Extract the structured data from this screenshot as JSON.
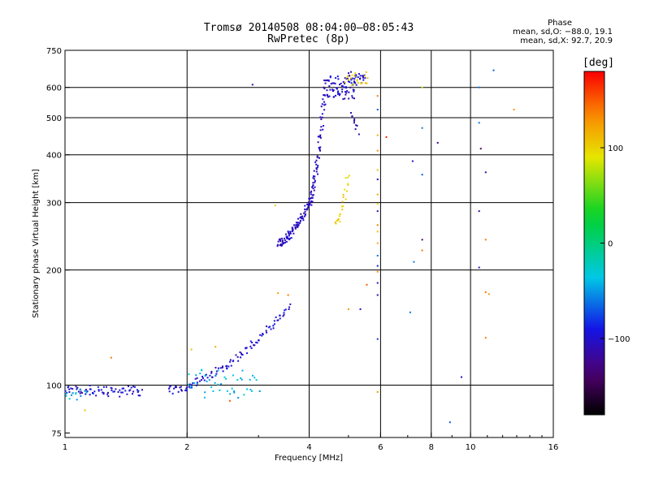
{
  "header": {
    "line1": "Tromsø 20140508 08:04:00–08:05:43",
    "line2": "RwPretec (8p)"
  },
  "stats": {
    "heading": "Phase",
    "line_o": "mean, sd,O: −88.0, 19.1",
    "line_x": "mean, sd,X:  92.7, 20.9"
  },
  "colorbar": {
    "label": "[deg]",
    "ticks": [
      "100",
      "0",
      "−100"
    ],
    "tick_values": [
      100,
      0,
      -100
    ],
    "range": [
      -180,
      180
    ]
  },
  "chart_data": {
    "type": "scatter",
    "title": "Tromsø 20140508 08:04:00–08:05:43",
    "subtitle": "RwPretec (8p)",
    "xlabel": "Frequency [MHz]",
    "ylabel": "Stationary phase Virtual Height [km]",
    "xscale": "log",
    "yscale": "log",
    "xlim": [
      1,
      16
    ],
    "ylim": [
      73,
      750
    ],
    "grid": true,
    "x_ticks": [
      1,
      2,
      4,
      6,
      8,
      10,
      16
    ],
    "x_tick_labels": [
      "1",
      "2",
      "4",
      "6",
      "8",
      "10",
      "16"
    ],
    "y_ticks": [
      75,
      100,
      200,
      300,
      400,
      500,
      600,
      750
    ],
    "y_tick_labels": [
      "75",
      "100",
      "200",
      "300",
      "400",
      "500",
      "600",
      "750"
    ],
    "color_scale": "phase (deg), -180 to 180, rainbow",
    "clusters": [
      {
        "name": "low E trace",
        "x0": 1.0,
        "x1": 1.55,
        "y0": 95,
        "y1": 98,
        "phase": -100,
        "n": 70,
        "shape": "flat"
      },
      {
        "name": "low E start",
        "x0": 1.0,
        "x1": 1.12,
        "y0": 93,
        "y1": 96,
        "phase": -40,
        "n": 12,
        "shape": "flat"
      },
      {
        "name": "E rise A",
        "x0": 1.8,
        "x1": 3.6,
        "y0": 97,
        "y1": 160,
        "phase": -100,
        "n": 110,
        "shape": "rise"
      },
      {
        "name": "E rise B",
        "x0": 2.0,
        "x1": 3.0,
        "y0": 95,
        "y1": 110,
        "phase": -40,
        "n": 45,
        "shape": "flat"
      },
      {
        "name": "F trace low",
        "x0": 3.35,
        "x1": 4.0,
        "y0": 235,
        "y1": 300,
        "phase": -105,
        "n": 90,
        "shape": "rise"
      },
      {
        "name": "F trace vertical",
        "x0": 4.0,
        "x1": 4.4,
        "y0": 300,
        "y1": 640,
        "phase": -105,
        "n": 80,
        "shape": "rise"
      },
      {
        "name": "F cusp",
        "x0": 4.4,
        "x1": 5.2,
        "y0": 560,
        "y1": 640,
        "phase": -100,
        "n": 70,
        "shape": "flat"
      },
      {
        "name": "F top",
        "x0": 5.0,
        "x1": 5.5,
        "y0": 620,
        "y1": 650,
        "phase": -100,
        "n": 25,
        "shape": "flat"
      },
      {
        "name": "X trace top",
        "x0": 4.9,
        "x1": 5.6,
        "y0": 610,
        "y1": 655,
        "phase": 100,
        "n": 20,
        "shape": "flat"
      },
      {
        "name": "X trace mid",
        "x0": 4.65,
        "x1": 5.0,
        "y0": 265,
        "y1": 355,
        "phase": 100,
        "n": 25,
        "shape": "rise"
      },
      {
        "name": "F descent",
        "x0": 5.1,
        "x1": 5.3,
        "y0": 460,
        "y1": 510,
        "phase": -110,
        "n": 10,
        "shape": "fall"
      }
    ],
    "points": [
      {
        "x": 2.9,
        "y": 610,
        "phase": -110
      },
      {
        "x": 1.3,
        "y": 118,
        "phase": 140
      },
      {
        "x": 1.12,
        "y": 86,
        "phase": 110
      },
      {
        "x": 2.55,
        "y": 91,
        "phase": 150
      },
      {
        "x": 2.05,
        "y": 124,
        "phase": 110
      },
      {
        "x": 2.35,
        "y": 126,
        "phase": 120
      },
      {
        "x": 3.35,
        "y": 174,
        "phase": 120
      },
      {
        "x": 3.55,
        "y": 172,
        "phase": 140
      },
      {
        "x": 3.3,
        "y": 295,
        "phase": 100
      },
      {
        "x": 5.9,
        "y": 570,
        "phase": 140
      },
      {
        "x": 5.9,
        "y": 525,
        "phase": -70
      },
      {
        "x": 5.9,
        "y": 450,
        "phase": 120
      },
      {
        "x": 5.9,
        "y": 410,
        "phase": 130
      },
      {
        "x": 5.9,
        "y": 365,
        "phase": 110
      },
      {
        "x": 5.9,
        "y": 345,
        "phase": -100
      },
      {
        "x": 5.9,
        "y": 315,
        "phase": 120
      },
      {
        "x": 5.9,
        "y": 298,
        "phase": 100
      },
      {
        "x": 5.9,
        "y": 285,
        "phase": -110
      },
      {
        "x": 5.9,
        "y": 262,
        "phase": 140
      },
      {
        "x": 5.9,
        "y": 252,
        "phase": 110
      },
      {
        "x": 5.9,
        "y": 235,
        "phase": 120
      },
      {
        "x": 5.9,
        "y": 218,
        "phase": -60
      },
      {
        "x": 5.9,
        "y": 205,
        "phase": -100
      },
      {
        "x": 5.9,
        "y": 198,
        "phase": 130
      },
      {
        "x": 5.9,
        "y": 185,
        "phase": -100
      },
      {
        "x": 5.9,
        "y": 172,
        "phase": -110
      },
      {
        "x": 5.9,
        "y": 132,
        "phase": -80
      },
      {
        "x": 5.9,
        "y": 96,
        "phase": 130
      },
      {
        "x": 6.2,
        "y": 445,
        "phase": 170
      },
      {
        "x": 5.55,
        "y": 183,
        "phase": 150
      },
      {
        "x": 5.35,
        "y": 158,
        "phase": -100
      },
      {
        "x": 5.0,
        "y": 158,
        "phase": 130
      },
      {
        "x": 7.2,
        "y": 385,
        "phase": -100
      },
      {
        "x": 7.6,
        "y": 470,
        "phase": -60
      },
      {
        "x": 7.6,
        "y": 355,
        "phase": -70
      },
      {
        "x": 7.6,
        "y": 240,
        "phase": -130
      },
      {
        "x": 7.25,
        "y": 210,
        "phase": -60
      },
      {
        "x": 7.6,
        "y": 225,
        "phase": 140
      },
      {
        "x": 7.1,
        "y": 155,
        "phase": -60
      },
      {
        "x": 7.6,
        "y": 600,
        "phase": 80
      },
      {
        "x": 8.3,
        "y": 430,
        "phase": -130
      },
      {
        "x": 8.9,
        "y": 80,
        "phase": -70
      },
      {
        "x": 9.5,
        "y": 105,
        "phase": -100
      },
      {
        "x": 10.5,
        "y": 600,
        "phase": -60
      },
      {
        "x": 10.5,
        "y": 485,
        "phase": -60
      },
      {
        "x": 10.6,
        "y": 415,
        "phase": -140
      },
      {
        "x": 10.9,
        "y": 360,
        "phase": -120
      },
      {
        "x": 10.5,
        "y": 285,
        "phase": -120
      },
      {
        "x": 10.9,
        "y": 240,
        "phase": 140
      },
      {
        "x": 10.5,
        "y": 203,
        "phase": -110
      },
      {
        "x": 10.9,
        "y": 175,
        "phase": 140
      },
      {
        "x": 11.1,
        "y": 173,
        "phase": 130
      },
      {
        "x": 10.9,
        "y": 133,
        "phase": 140
      },
      {
        "x": 11.4,
        "y": 665,
        "phase": -70
      },
      {
        "x": 12.8,
        "y": 525,
        "phase": 130
      }
    ]
  }
}
